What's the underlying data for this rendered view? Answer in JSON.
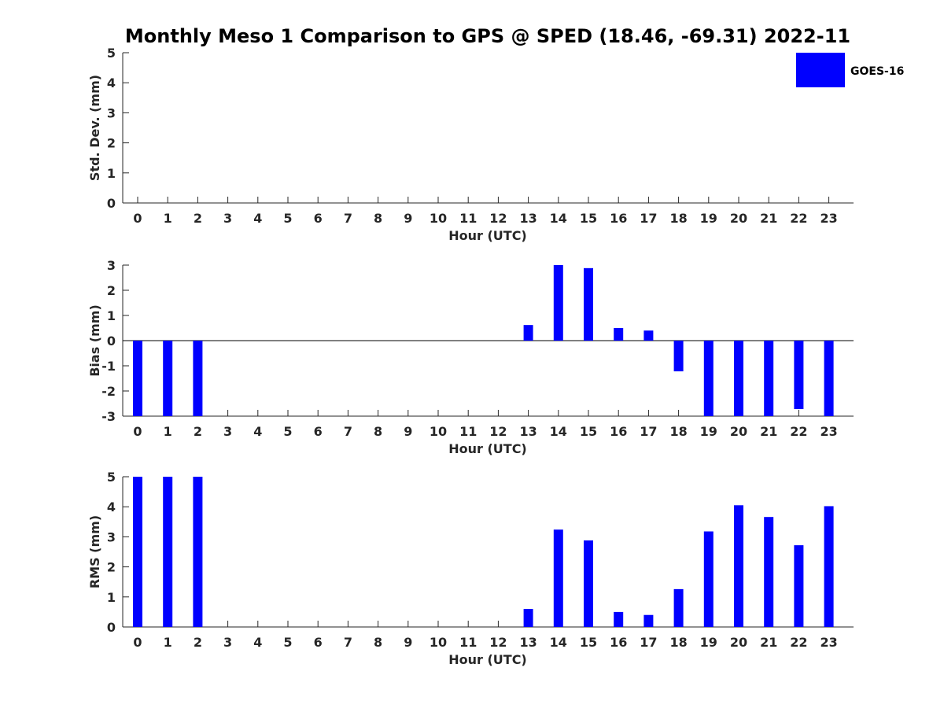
{
  "colors": {
    "bar": "#0000ff",
    "axis": "#262626",
    "background": "#ffffff"
  },
  "chart_data": {
    "title": "Monthly Meso 1 Comparison to GPS @ SPED (18.46, -69.31) 2022-11",
    "legend": {
      "label": "GOES-16",
      "placement": "top-right"
    },
    "categories": [
      "0",
      "1",
      "2",
      "3",
      "4",
      "5",
      "6",
      "7",
      "8",
      "9",
      "10",
      "11",
      "12",
      "13",
      "14",
      "15",
      "16",
      "17",
      "18",
      "19",
      "20",
      "21",
      "22",
      "23"
    ],
    "panels": [
      {
        "type": "bar",
        "name": "stddev",
        "xlabel": "Hour (UTC)",
        "ylabel": "Std. Dev. (mm)",
        "ylim": [
          0,
          5
        ],
        "yticks": [
          0,
          1,
          2,
          3,
          4,
          5
        ],
        "series": [
          {
            "name": "GOES-16",
            "values": [
              null,
              null,
              null,
              null,
              null,
              null,
              null,
              null,
              null,
              null,
              null,
              null,
              null,
              null,
              null,
              null,
              null,
              null,
              null,
              null,
              null,
              null,
              null,
              null
            ]
          }
        ]
      },
      {
        "type": "bar",
        "name": "bias",
        "xlabel": "Hour (UTC)",
        "ylabel": "Bias (mm)",
        "ylim": [
          -3,
          3
        ],
        "yticks": [
          -3,
          -2,
          -1,
          0,
          1,
          2,
          3
        ],
        "zero_line": true,
        "series": [
          {
            "name": "GOES-16",
            "values": [
              -3.0,
              -3.0,
              -3.0,
              null,
              null,
              null,
              null,
              null,
              null,
              null,
              null,
              null,
              null,
              0.62,
              3.0,
              2.88,
              0.5,
              0.4,
              -1.22,
              -3.0,
              -3.0,
              -3.0,
              -2.72,
              -3.0
            ]
          }
        ]
      },
      {
        "type": "bar",
        "name": "rms",
        "xlabel": "Hour (UTC)",
        "ylabel": "RMS (mm)",
        "ylim": [
          0,
          5
        ],
        "yticks": [
          0,
          1,
          2,
          3,
          4,
          5
        ],
        "series": [
          {
            "name": "GOES-16",
            "values": [
              5.0,
              5.0,
              5.0,
              null,
              null,
              null,
              null,
              null,
              null,
              null,
              null,
              null,
              null,
              0.6,
              3.24,
              2.88,
              0.5,
              0.4,
              1.26,
              3.18,
              4.05,
              3.66,
              2.72,
              4.02
            ]
          }
        ]
      }
    ]
  }
}
